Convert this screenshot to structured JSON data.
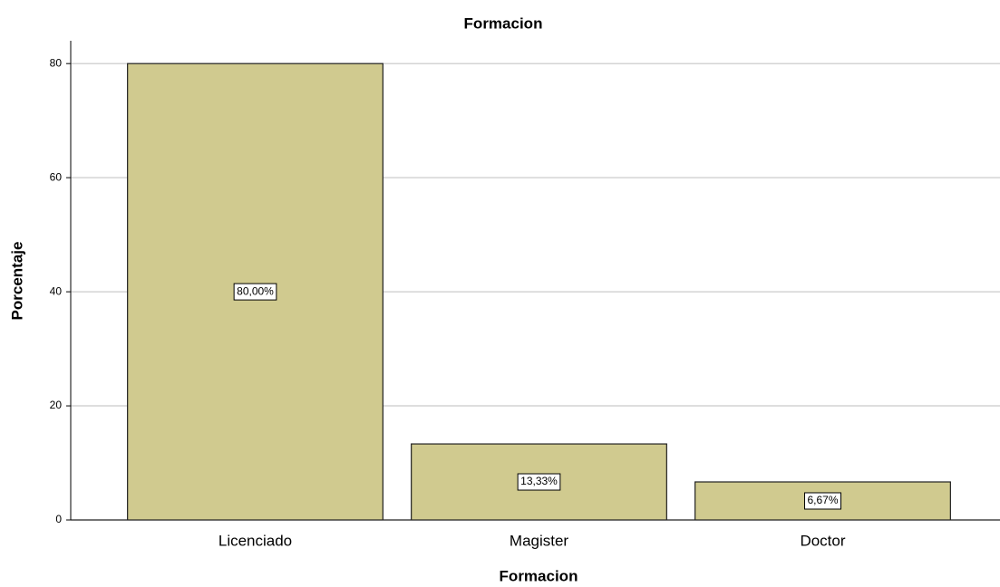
{
  "chart_data": {
    "type": "bar",
    "title": "Formacion",
    "x_label": "Formacion",
    "y_label": "Porcentaje",
    "categories": [
      "Licenciado",
      "Magister",
      "Doctor"
    ],
    "values": [
      80,
      13.33,
      6.67
    ],
    "value_labels": [
      "80,00%",
      "13,33%",
      "6,67%"
    ],
    "color": "#d0ca8f",
    "ylim": [
      0,
      84
    ],
    "yticks": [
      0,
      20,
      40,
      60,
      80
    ],
    "grid": true
  }
}
